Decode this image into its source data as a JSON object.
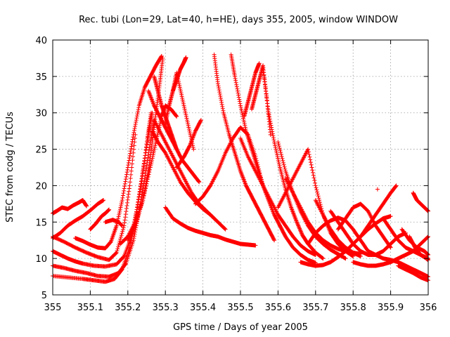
{
  "chart_data": {
    "type": "scatter",
    "title": "Rec. tubi (Lon=29, Lat=40, h=HE), days 355, 2005, window WINDOW",
    "xlabel": "GPS time / Days of year 2005",
    "ylabel": "STEC from codg / TECUs",
    "xlim": [
      355,
      356
    ],
    "ylim": [
      5,
      40
    ],
    "x_ticks": [
      "355",
      "355.1",
      "355.2",
      "355.3",
      "355.4",
      "355.5",
      "355.6",
      "355.7",
      "355.8",
      "355.9",
      "356"
    ],
    "y_ticks": [
      "5",
      "10",
      "15",
      "20",
      "25",
      "30",
      "35",
      "40"
    ],
    "grid": true,
    "marker": "+",
    "color": "#ff0000",
    "series": [
      {
        "x": [
          355.0,
          355.01,
          355.025,
          355.04,
          355.055,
          355.07,
          355.08,
          355.09
        ],
        "y": [
          16.2,
          16.5,
          17.0,
          16.8,
          17.3,
          17.7,
          18.0,
          17.2
        ]
      },
      {
        "x": [
          355.0,
          355.02,
          355.04,
          355.06,
          355.08,
          355.1,
          355.12,
          355.135
        ],
        "y": [
          12.8,
          13.5,
          14.5,
          15.2,
          15.8,
          16.6,
          17.5,
          18.0
        ]
      },
      {
        "x": [
          355.0,
          355.02,
          355.04,
          355.06,
          355.08,
          355.11,
          355.14,
          355.17,
          355.19,
          355.21,
          355.225,
          355.24,
          355.255,
          355.265
        ],
        "y": [
          11.0,
          10.5,
          10.0,
          9.6,
          9.3,
          9.0,
          8.9,
          9.2,
          10.3,
          13.0,
          17.0,
          22.0,
          27.0,
          30.0
        ]
      },
      {
        "x": [
          355.0,
          355.03,
          355.06,
          355.09,
          355.12,
          355.15,
          355.175,
          355.195,
          355.215,
          355.23,
          355.245,
          355.26,
          355.27
        ],
        "y": [
          9.0,
          8.7,
          8.3,
          8.0,
          7.6,
          7.5,
          8.0,
          9.3,
          12.5,
          16.5,
          21.0,
          26.0,
          29.0
        ]
      },
      {
        "x": [
          355.0,
          355.04,
          355.08,
          355.11,
          355.14,
          355.165,
          355.185,
          355.205,
          355.222,
          355.238,
          355.252,
          355.262
        ],
        "y": [
          7.6,
          7.4,
          7.2,
          7.0,
          6.8,
          7.2,
          8.5,
          11.5,
          16.0,
          21.0,
          26.5,
          30.0
        ]
      },
      {
        "x": [
          355.0,
          355.03,
          355.06,
          355.09,
          355.12,
          355.15,
          355.17,
          355.19,
          355.205,
          355.22
        ],
        "y": [
          13.0,
          12.3,
          11.5,
          10.8,
          10.2,
          9.8,
          10.8,
          14.5,
          20.0,
          27.0
        ]
      },
      {
        "x": [
          355.06,
          355.08,
          355.1,
          355.12,
          355.14,
          355.155,
          355.17,
          355.185,
          355.2,
          355.215,
          355.23,
          355.245,
          355.26,
          355.275,
          355.29
        ],
        "y": [
          12.8,
          12.4,
          11.9,
          11.5,
          11.4,
          12.3,
          14.5,
          18.0,
          22.5,
          27.0,
          31.0,
          33.5,
          35.0,
          36.5,
          37.8
        ]
      },
      {
        "x": [
          355.1,
          355.115,
          355.13,
          355.14,
          355.15
        ],
        "y": [
          14.0,
          14.8,
          15.8,
          16.2,
          16.7
        ]
      },
      {
        "x": [
          355.14,
          355.16,
          355.175,
          355.185
        ],
        "y": [
          15.0,
          15.3,
          15.0,
          14.5
        ]
      },
      {
        "x": [
          355.18,
          355.2,
          355.22,
          355.24,
          355.255,
          355.265,
          355.275,
          355.285,
          355.293
        ],
        "y": [
          12.0,
          13.0,
          15.0,
          18.0,
          22.0,
          26.0,
          30.0,
          34.0,
          37.5
        ]
      },
      {
        "x": [
          355.2,
          355.22,
          355.24,
          355.26,
          355.275,
          355.29,
          355.3,
          355.315,
          355.33
        ],
        "y": [
          12.5,
          14.5,
          18.0,
          22.5,
          26.0,
          29.5,
          31.0,
          30.5,
          29.5
        ]
      },
      {
        "x": [
          355.255,
          355.27,
          355.285,
          355.3,
          355.315,
          355.33,
          355.345,
          355.36,
          355.375,
          355.39
        ],
        "y": [
          33.0,
          31.0,
          29.5,
          28.0,
          26.5,
          25.0,
          23.5,
          22.5,
          21.5,
          20.5
        ]
      },
      {
        "x": [
          355.27,
          355.28,
          355.29,
          355.3,
          355.31,
          355.32,
          355.33
        ],
        "y": [
          35.0,
          33.0,
          31.0,
          29.5,
          28.0,
          26.5,
          25.0
        ]
      },
      {
        "x": [
          355.265,
          355.28,
          355.3,
          355.32,
          355.34,
          355.36,
          355.38,
          355.4,
          355.42,
          355.44,
          355.46
        ],
        "y": [
          27.5,
          26.0,
          24.5,
          22.5,
          20.5,
          19.0,
          17.8,
          16.8,
          16.0,
          15.0,
          14.0
        ]
      },
      {
        "x": [
          355.27,
          355.29,
          355.31,
          355.33,
          355.35,
          355.37,
          355.39,
          355.41,
          355.43
        ],
        "y": [
          29.0,
          27.0,
          25.0,
          23.0,
          21.0,
          19.0,
          17.5,
          16.5,
          15.5
        ]
      },
      {
        "x": [
          355.3,
          355.31,
          355.32,
          355.33,
          355.345,
          355.36,
          355.375
        ],
        "y": [
          28.5,
          31.0,
          33.0,
          35.5,
          32.0,
          28.5,
          25.0
        ]
      },
      {
        "x": [
          355.3,
          355.32,
          355.34,
          355.36,
          355.38,
          355.4,
          355.42,
          355.44,
          355.46,
          355.48,
          355.5,
          355.52,
          355.54
        ],
        "y": [
          17.0,
          15.5,
          14.8,
          14.2,
          13.8,
          13.5,
          13.2,
          13.0,
          12.6,
          12.3,
          12.0,
          11.9,
          11.8
        ]
      },
      {
        "x": [
          355.32,
          355.33,
          355.34,
          355.35,
          355.355
        ],
        "y": [
          33.0,
          34.5,
          36.0,
          37.0,
          37.6
        ]
      },
      {
        "x": [
          355.33,
          355.35,
          355.365,
          355.38,
          355.395
        ],
        "y": [
          22.5,
          24.0,
          25.5,
          27.5,
          29.0
        ]
      },
      {
        "x": [
          355.38,
          355.4,
          355.42,
          355.44,
          355.46,
          355.48,
          355.5,
          355.52,
          355.54,
          355.56
        ],
        "y": [
          17.5,
          18.5,
          20.0,
          22.0,
          24.5,
          26.5,
          28.0,
          27.0,
          24.0,
          20.0
        ]
      },
      {
        "x": [
          355.43,
          355.44,
          355.455,
          355.47,
          355.485,
          355.5,
          355.515,
          355.53,
          355.545,
          355.56,
          355.575,
          355.59
        ],
        "y": [
          38.0,
          34.0,
          30.0,
          27.0,
          24.5,
          22.0,
          20.0,
          18.5,
          17.0,
          15.5,
          14.0,
          12.5
        ]
      },
      {
        "x": [
          355.475,
          355.485,
          355.5,
          355.515,
          355.53,
          355.545,
          355.56,
          355.575,
          355.59,
          355.605,
          355.62,
          355.64,
          355.66,
          355.68,
          355.7
        ],
        "y": [
          38.0,
          35.0,
          31.0,
          27.5,
          25.0,
          22.5,
          20.0,
          18.0,
          16.0,
          14.5,
          13.0,
          11.5,
          10.5,
          9.8,
          9.4
        ]
      },
      {
        "x": [
          355.5,
          355.52,
          355.54,
          355.56,
          355.58,
          355.6,
          355.62,
          355.64,
          355.66,
          355.68,
          355.7
        ],
        "y": [
          26.5,
          24.0,
          22.0,
          20.0,
          18.0,
          16.0,
          14.5,
          13.0,
          11.8,
          11.0,
          10.5
        ]
      },
      {
        "x": [
          355.51,
          355.52,
          355.53,
          355.54,
          355.55
        ],
        "y": [
          29.5,
          31.5,
          33.5,
          35.5,
          36.8
        ]
      },
      {
        "x": [
          355.53,
          355.54,
          355.55,
          355.56,
          355.57,
          355.58
        ],
        "y": [
          30.5,
          32.5,
          34.5,
          36.5,
          32.0,
          27.0
        ]
      },
      {
        "x": [
          355.56,
          355.575,
          355.59,
          355.605,
          355.62,
          355.635,
          355.65,
          355.665,
          355.68,
          355.7,
          355.72
        ],
        "y": [
          36.0,
          30.0,
          26.0,
          22.5,
          19.5,
          17.0,
          15.0,
          13.2,
          12.0,
          10.8,
          10.0
        ]
      },
      {
        "x": [
          355.6,
          355.62,
          355.64,
          355.66,
          355.68,
          355.7,
          355.72,
          355.74,
          355.76,
          355.78,
          355.8
        ],
        "y": [
          17.0,
          19.0,
          21.0,
          23.0,
          25.0,
          20.0,
          16.0,
          13.5,
          12.0,
          11.0,
          10.3
        ]
      },
      {
        "x": [
          355.62,
          355.64,
          355.66,
          355.68,
          355.7,
          355.72,
          355.74,
          355.76,
          355.78,
          355.8,
          355.82
        ],
        "y": [
          21.0,
          19.0,
          17.0,
          15.0,
          13.5,
          12.5,
          11.8,
          11.3,
          11.0,
          10.8,
          10.6
        ]
      },
      {
        "x": [
          355.6,
          355.62,
          355.64,
          355.66,
          355.68,
          355.7,
          355.72,
          355.74,
          355.76,
          355.78
        ],
        "y": [
          26.0,
          22.0,
          19.0,
          16.5,
          14.5,
          13.0,
          12.0,
          11.2,
          10.6,
          10.0
        ]
      },
      {
        "x": [
          355.66,
          355.68,
          355.7,
          355.72,
          355.74,
          355.76,
          355.78,
          355.8,
          355.82,
          355.84,
          355.86,
          355.88,
          355.9
        ],
        "y": [
          9.5,
          9.2,
          9.0,
          9.1,
          9.5,
          10.2,
          11.0,
          12.0,
          13.0,
          14.0,
          14.8,
          15.5,
          15.8
        ]
      },
      {
        "x": [
          355.68,
          355.7,
          355.72,
          355.74,
          355.76,
          355.78,
          355.8,
          355.82,
          355.84
        ],
        "y": [
          12.0,
          13.5,
          14.5,
          15.2,
          15.6,
          15.2,
          14.0,
          12.5,
          11.0
        ]
      },
      {
        "x": [
          355.7,
          355.72,
          355.74,
          355.76,
          355.78,
          355.8,
          355.82
        ],
        "y": [
          18.0,
          16.0,
          14.0,
          12.5,
          11.5,
          10.8,
          10.3
        ]
      },
      {
        "x": [
          355.74,
          355.76,
          355.78,
          355.8,
          355.82,
          355.84,
          355.86,
          355.88,
          355.9,
          355.92,
          355.94
        ],
        "y": [
          16.5,
          15.0,
          13.5,
          12.0,
          11.0,
          10.5,
          10.5,
          11.0,
          12.0,
          13.0,
          13.5
        ]
      },
      {
        "x": [
          355.76,
          355.78,
          355.8,
          355.82,
          355.84,
          355.86,
          355.88,
          355.9
        ],
        "y": [
          14.0,
          15.5,
          17.0,
          17.5,
          16.5,
          14.5,
          13.0,
          11.5
        ]
      },
      {
        "x": [
          355.8,
          355.82,
          355.84,
          355.86,
          355.88,
          355.9,
          355.92,
          355.94,
          355.96,
          355.98,
          356.0
        ],
        "y": [
          9.5,
          9.2,
          9.0,
          9.0,
          9.2,
          9.5,
          10.0,
          10.5,
          11.0,
          12.0,
          13.0
        ]
      },
      {
        "x": [
          355.84,
          355.86,
          355.88,
          355.9,
          355.92,
          355.94,
          355.96,
          355.98,
          356.0
        ],
        "y": [
          11.0,
          10.5,
          10.0,
          9.8,
          9.5,
          9.0,
          8.5,
          8.0,
          7.5
        ]
      },
      {
        "x": [
          355.82,
          355.84,
          355.86,
          355.88,
          355.9,
          355.915
        ],
        "y": [
          13.0,
          14.5,
          16.0,
          17.5,
          19.0,
          20.0
        ]
      },
      {
        "x": [
          355.88,
          355.9,
          355.92,
          355.94,
          355.96,
          355.98,
          356.0
        ],
        "y": [
          15.5,
          14.0,
          12.5,
          11.5,
          11.0,
          10.5,
          10.0
        ]
      },
      {
        "x": [
          355.93,
          355.95,
          355.97,
          355.99,
          356.0
        ],
        "y": [
          14.0,
          12.5,
          11.5,
          11.0,
          10.5
        ]
      },
      {
        "x": [
          355.92,
          355.94,
          355.96,
          355.98,
          356.0
        ],
        "y": [
          9.0,
          8.5,
          8.0,
          7.4,
          7.0
        ]
      },
      {
        "x": [
          355.95,
          355.965,
          355.98,
          355.995,
          356.0
        ],
        "y": [
          13.0,
          11.5,
          10.5,
          10.0,
          9.8
        ]
      },
      {
        "x": [
          355.96,
          355.97,
          355.98,
          355.99,
          356.0
        ],
        "y": [
          19.0,
          18.0,
          17.5,
          17.0,
          16.5
        ]
      },
      {
        "x": [
          355.865
        ],
        "y": [
          19.5
        ]
      }
    ]
  }
}
